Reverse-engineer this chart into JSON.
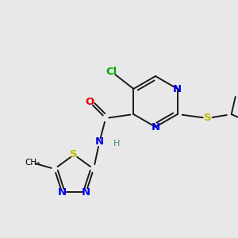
{
  "background_color": "#e8e8e8",
  "figsize": [
    3.0,
    3.0
  ],
  "dpi": 100,
  "colors": {
    "N": "#0000ee",
    "C": "#000000",
    "O": "#ee0000",
    "S": "#bbbb00",
    "Cl": "#00aa00",
    "H": "#448888",
    "bond": "#1a1a1a"
  }
}
